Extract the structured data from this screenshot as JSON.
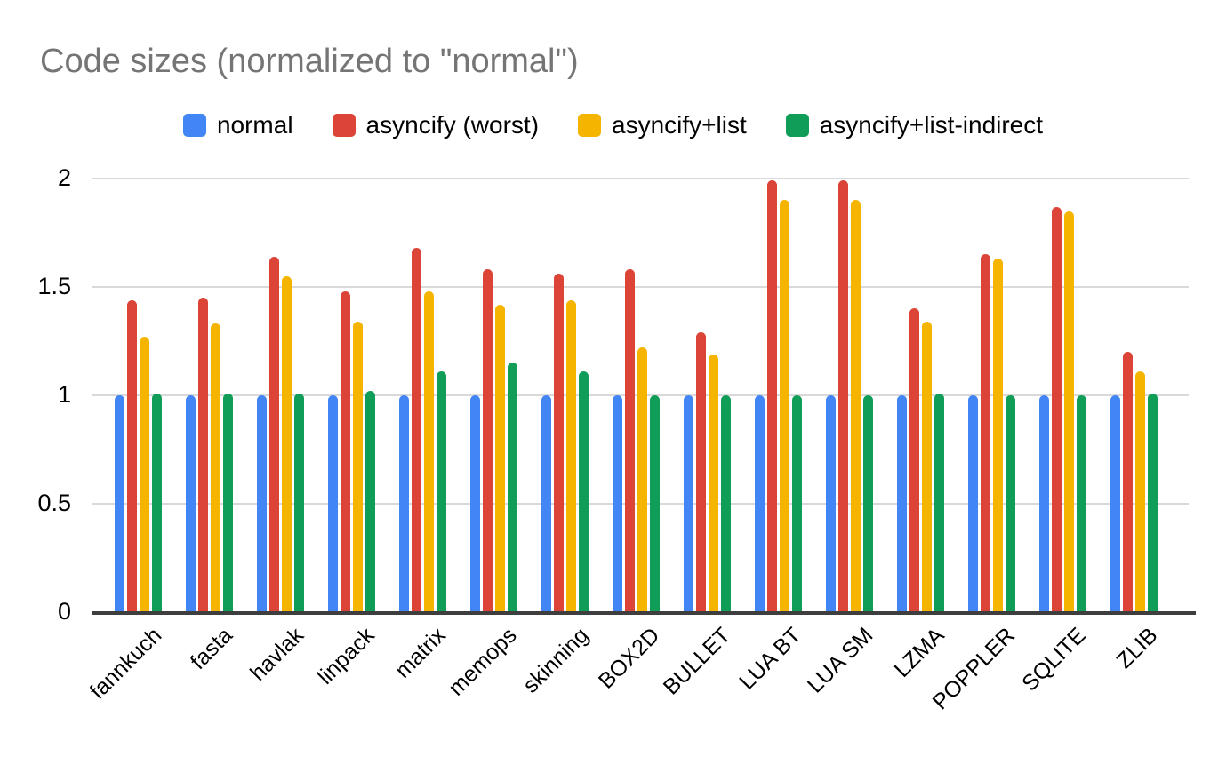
{
  "chart_data": {
    "type": "bar",
    "title": "Code sizes (normalized to \"normal\")",
    "categories": [
      "fannkuch",
      "fasta",
      "havlak",
      "linpack",
      "matrix",
      "memops",
      "skinning",
      "BOX2D",
      "BULLET",
      "LUA BT",
      "LUA SM",
      "LZMA",
      "POPPLER",
      "SQLITE",
      "ZLIB"
    ],
    "series": [
      {
        "name": "normal",
        "color": "#4285F4",
        "values": [
          1.0,
          1.0,
          1.0,
          1.0,
          1.0,
          1.0,
          1.0,
          1.0,
          1.0,
          1.0,
          1.0,
          1.0,
          1.0,
          1.0,
          1.0
        ]
      },
      {
        "name": "asyncify (worst)",
        "color": "#DB4437",
        "values": [
          1.44,
          1.45,
          1.64,
          1.48,
          1.68,
          1.58,
          1.56,
          1.58,
          1.29,
          1.99,
          1.99,
          1.4,
          1.65,
          1.87,
          1.2
        ]
      },
      {
        "name": "asyncify+list",
        "color": "#F4B400",
        "values": [
          1.27,
          1.33,
          1.55,
          1.34,
          1.48,
          1.42,
          1.44,
          1.22,
          1.19,
          1.9,
          1.9,
          1.34,
          1.63,
          1.85,
          1.11
        ]
      },
      {
        "name": "asyncify+list-indirect",
        "color": "#0F9D58",
        "values": [
          1.01,
          1.01,
          1.01,
          1.02,
          1.11,
          1.15,
          1.11,
          1.0,
          1.0,
          1.0,
          1.0,
          1.01,
          1.0,
          1.0,
          1.01
        ]
      }
    ],
    "xlabel": "",
    "ylabel": "",
    "yticks": [
      0,
      0.5,
      1,
      1.5,
      2
    ],
    "ytick_labels": [
      "0",
      "0.5",
      "1",
      "1.5",
      "2"
    ],
    "ylim": [
      0,
      2.05
    ],
    "grid": true,
    "legend_position": "top",
    "x_labels_rotation_deg": 45,
    "title_color": "#757575",
    "axis_color": "#3e3e3e",
    "gridline_color": "#d9d9d9",
    "label_color": "#000000",
    "background": "#ffffff"
  }
}
